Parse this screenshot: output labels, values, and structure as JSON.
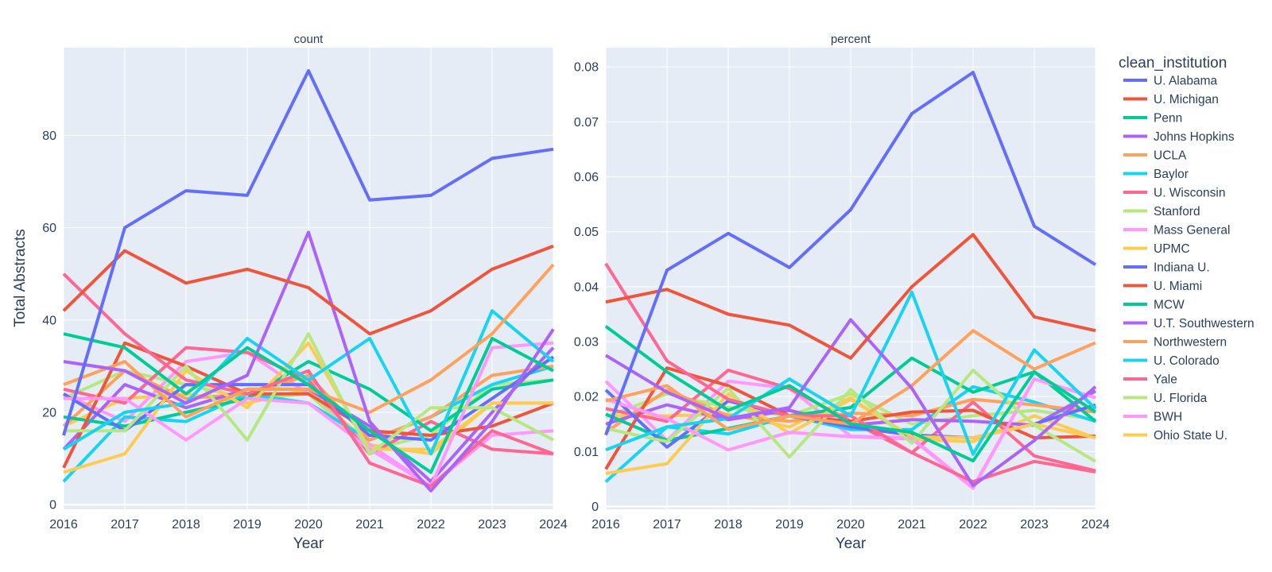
{
  "chart_data": {
    "type": "line",
    "x": [
      2016,
      2017,
      2018,
      2019,
      2020,
      2021,
      2022,
      2023,
      2024
    ],
    "xlabel": "Year",
    "ylabel": "Total Abstracts",
    "legend": {
      "title": "clean_institution",
      "placement": "right"
    },
    "grid": true,
    "series": [
      {
        "name": "U. Alabama",
        "color": "#636efa"
      },
      {
        "name": "U. Michigan",
        "color": "#EF553B"
      },
      {
        "name": "Penn",
        "color": "#00cc96"
      },
      {
        "name": "Johns Hopkins",
        "color": "#ab63fa"
      },
      {
        "name": "UCLA",
        "color": "#FFA15A"
      },
      {
        "name": "Baylor",
        "color": "#19d3f3"
      },
      {
        "name": "U. Wisconsin",
        "color": "#FF6692"
      },
      {
        "name": "Stanford",
        "color": "#B6E880"
      },
      {
        "name": "Mass General",
        "color": "#FF97FF"
      },
      {
        "name": "UPMC",
        "color": "#FECB52"
      },
      {
        "name": "Indiana U.",
        "color": "#636efa"
      },
      {
        "name": "U. Miami",
        "color": "#EF553B"
      },
      {
        "name": "MCW",
        "color": "#00cc96"
      },
      {
        "name": "U.T. Southwestern",
        "color": "#ab63fa"
      },
      {
        "name": "Northwestern",
        "color": "#FFA15A"
      },
      {
        "name": "U. Colorado",
        "color": "#19d3f3"
      },
      {
        "name": "Yale",
        "color": "#FF6692"
      },
      {
        "name": "U. Florida",
        "color": "#B6E880"
      },
      {
        "name": "BWH",
        "color": "#FF97FF"
      },
      {
        "name": "Ohio State U.",
        "color": "#FECB52"
      }
    ],
    "panels": [
      {
        "title": "count",
        "ylim": [
          -1,
          99
        ],
        "yticks": [
          0,
          20,
          40,
          60,
          80
        ],
        "ytick_labels": [
          "0",
          "20",
          "40",
          "60",
          "80"
        ],
        "values": [
          [
            15,
            60,
            68,
            67,
            94,
            66,
            67,
            75,
            77
          ],
          [
            42,
            55,
            48,
            51,
            47,
            37,
            42,
            51,
            56
          ],
          [
            37,
            34,
            24,
            34,
            26,
            16,
            7,
            36,
            29
          ],
          [
            31,
            29,
            22,
            28,
            59,
            18,
            3,
            18,
            38
          ],
          [
            26,
            31,
            19,
            25,
            25,
            20,
            27,
            37,
            52
          ],
          [
            12,
            20,
            22,
            36,
            27,
            36,
            11,
            42,
            31
          ],
          [
            50,
            37,
            27,
            24,
            29,
            9,
            4,
            16,
            11
          ],
          [
            16,
            16,
            30,
            14,
            37,
            11,
            21,
            21,
            14
          ],
          [
            23,
            23,
            14,
            23,
            22,
            12,
            4,
            34,
            35
          ],
          [
            7,
            11,
            29,
            21,
            35,
            12,
            12,
            22,
            22
          ],
          [
            24,
            16,
            26,
            26,
            26,
            15,
            14,
            23,
            32
          ],
          [
            8,
            35,
            30,
            24,
            24,
            16,
            15,
            17,
            22
          ],
          [
            19,
            17,
            20,
            23,
            31,
            25,
            16,
            25,
            27
          ],
          [
            12,
            26,
            21,
            25,
            25,
            17,
            5,
            20,
            34
          ],
          [
            17,
            29,
            23,
            24,
            28,
            14,
            19,
            28,
            30
          ],
          [
            5,
            19,
            18,
            24,
            22,
            14,
            19,
            26,
            30
          ],
          [
            25,
            22,
            34,
            33,
            27,
            11,
            18,
            12,
            11
          ],
          [
            23,
            29,
            26,
            23,
            24,
            12,
            15,
            26,
            27
          ],
          [
            24,
            18,
            31,
            33,
            24,
            13,
            4,
            15,
            16
          ],
          [
            17,
            23,
            24,
            22,
            25,
            13,
            11,
            22,
            22
          ]
        ]
      },
      {
        "title": "percent",
        "ylim": [
          -0.0005,
          0.0835
        ],
        "yticks": [
          0,
          0.01,
          0.02,
          0.03,
          0.04,
          0.05,
          0.06,
          0.07,
          0.08
        ],
        "ytick_labels": [
          "0",
          "0.01",
          "0.02",
          "0.03",
          "0.04",
          "0.05",
          "0.06",
          "0.07",
          "0.08"
        ],
        "values": [
          [
            0.013,
            0.043,
            0.0497,
            0.0435,
            0.054,
            0.0715,
            0.079,
            0.051,
            0.044
          ],
          [
            0.0372,
            0.0395,
            0.035,
            0.033,
            0.027,
            0.04,
            0.0495,
            0.0345,
            0.032
          ],
          [
            0.0328,
            0.0245,
            0.0175,
            0.022,
            0.015,
            0.0135,
            0.0083,
            0.0245,
            0.0172
          ],
          [
            0.0275,
            0.0208,
            0.016,
            0.018,
            0.034,
            0.0215,
            0.0038,
            0.012,
            0.0218
          ],
          [
            0.0192,
            0.022,
            0.014,
            0.0165,
            0.015,
            0.022,
            0.032,
            0.025,
            0.0298
          ],
          [
            0.0103,
            0.0145,
            0.016,
            0.0232,
            0.0165,
            0.039,
            0.0095,
            0.0285,
            0.0178
          ],
          [
            0.0442,
            0.0265,
            0.0195,
            0.0165,
            0.0165,
            0.0098,
            0.0045,
            0.0082,
            0.0063
          ],
          [
            0.0142,
            0.0118,
            0.0215,
            0.009,
            0.0213,
            0.0115,
            0.0248,
            0.0148,
            0.0082
          ],
          [
            0.0195,
            0.016,
            0.0103,
            0.0135,
            0.0127,
            0.0123,
            0.0033,
            0.0232,
            0.0198
          ],
          [
            0.006,
            0.0078,
            0.0205,
            0.0133,
            0.0195,
            0.0127,
            0.0125,
            0.015,
            0.0125
          ],
          [
            0.0212,
            0.0108,
            0.0192,
            0.0165,
            0.0145,
            0.013,
            0.0125,
            0.015,
            0.0185
          ],
          [
            0.0068,
            0.0252,
            0.022,
            0.0165,
            0.0155,
            0.0172,
            0.0175,
            0.0125,
            0.0128
          ],
          [
            0.0168,
            0.012,
            0.0142,
            0.0165,
            0.018,
            0.027,
            0.0208,
            0.0245,
            0.0155
          ],
          [
            0.015,
            0.0185,
            0.0158,
            0.0175,
            0.0148,
            0.0158,
            0.0155,
            0.0148,
            0.021
          ],
          [
            0.0135,
            0.0212,
            0.0165,
            0.0155,
            0.017,
            0.0165,
            0.0195,
            0.0185,
            0.0172
          ],
          [
            0.0045,
            0.0145,
            0.0132,
            0.0165,
            0.014,
            0.014,
            0.0218,
            0.019,
            0.0155
          ],
          [
            0.0178,
            0.0155,
            0.0248,
            0.0215,
            0.0155,
            0.0098,
            0.019,
            0.0092,
            0.0065
          ],
          [
            0.0163,
            0.0205,
            0.018,
            0.0165,
            0.0205,
            0.015,
            0.0165,
            0.0175,
            0.0158
          ],
          [
            0.0228,
            0.012,
            0.0228,
            0.0215,
            0.0128,
            0.0125,
            0.0035,
            0.0232,
            0.0198
          ],
          [
            0.0165,
            0.0165,
            0.0168,
            0.0145,
            0.0198,
            0.0122,
            0.0118,
            0.0165,
            0.0125
          ]
        ]
      }
    ]
  }
}
